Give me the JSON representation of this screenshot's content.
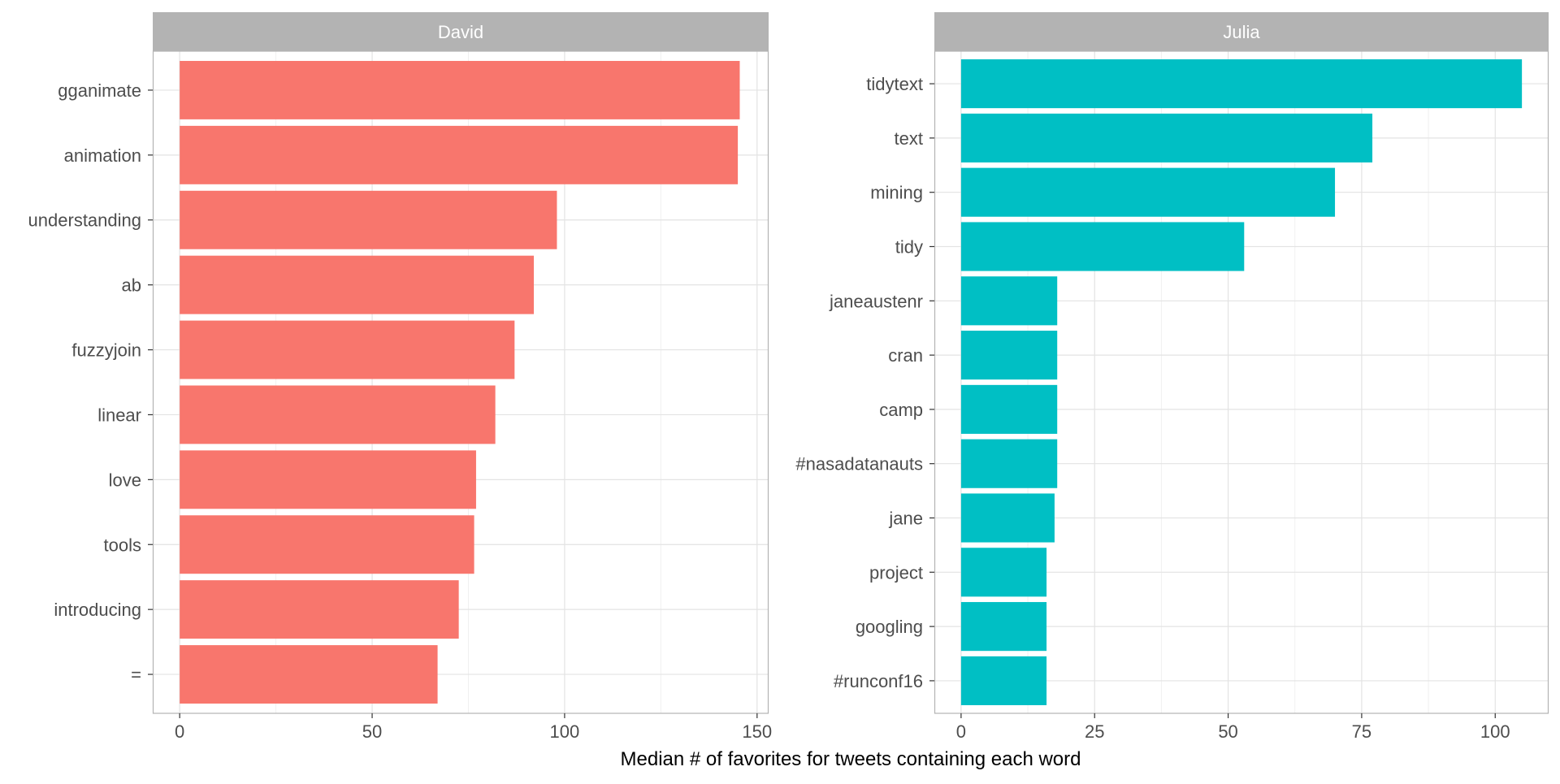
{
  "chart_data": {
    "type": "bar",
    "orientation": "horizontal",
    "xlabel": "Median # of favorites for tweets containing each word",
    "grid": true,
    "panels": [
      {
        "strip_label": "David",
        "color": "#F8766D",
        "xlim": [
          -7,
          153
        ],
        "xticks": [
          0,
          50,
          100,
          150
        ],
        "categories": [
          "gganimate",
          "animation",
          "understanding",
          "ab",
          "fuzzyjoin",
          "linear",
          "love",
          "tools",
          "introducing",
          "="
        ],
        "values": [
          145.5,
          145,
          98,
          92,
          87,
          82,
          77,
          76.5,
          72.5,
          67
        ]
      },
      {
        "strip_label": "Julia",
        "color": "#00BFC4",
        "xlim": [
          -5,
          110
        ],
        "xticks": [
          0,
          25,
          50,
          75,
          100
        ],
        "categories": [
          "tidytext",
          "text",
          "mining",
          "tidy",
          "janeaustenr",
          "cran",
          "camp",
          "#nasadatanauts",
          "jane",
          "project",
          "googling",
          "#runconf16"
        ],
        "values": [
          105,
          77,
          70,
          53,
          18,
          18,
          18,
          18,
          17.5,
          16,
          16,
          16
        ]
      }
    ]
  }
}
